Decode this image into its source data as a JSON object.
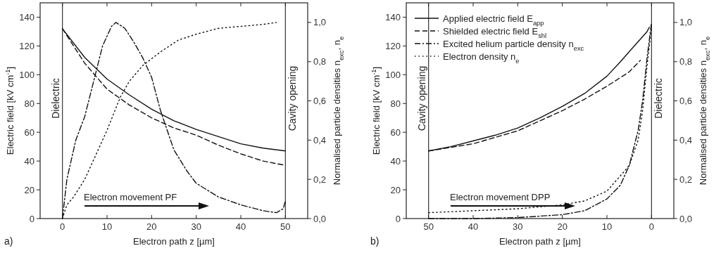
{
  "chart_data": [
    {
      "type": "line",
      "xlabel": "Electron path z [µm]",
      "ylabel": "Electric field [kV cm$^{-1}$]",
      "y2label": "Normalised particle densities n$_{exc}$, n$_{e}$",
      "xlim": [
        -5,
        55
      ],
      "xticks": [
        0,
        10,
        20,
        30,
        40,
        50
      ],
      "ylim": [
        0,
        150
      ],
      "yticks": [
        0,
        20,
        40,
        60,
        80,
        100,
        120,
        140
      ],
      "y2lim": [
        0,
        1.1
      ],
      "y2ticks": [
        {
          "value": 0,
          "label": "0,0"
        },
        {
          "value": 0.2,
          "label": "0,2"
        },
        {
          "value": 0.4,
          "label": "0,4"
        },
        {
          "value": 0.6,
          "label": "0,6"
        },
        {
          "value": 0.8,
          "label": "0,8"
        },
        {
          "value": 1,
          "label": "1,0"
        }
      ],
      "legend": false,
      "series": [
        {
          "color": "#111111",
          "line_style": "solid",
          "x": [
            0,
            5,
            10,
            15,
            20,
            25,
            30,
            35,
            40,
            45,
            50
          ],
          "values": [
            132,
            112,
            97,
            86,
            76,
            68,
            62,
            57,
            52,
            49,
            47
          ]
        },
        {
          "color": "#111111",
          "line_style": "dashed",
          "x": [
            0,
            5,
            10,
            15,
            20,
            25,
            30,
            35,
            40,
            45,
            50
          ],
          "values": [
            132,
            108,
            90,
            79,
            70,
            63,
            58,
            51,
            45,
            40,
            37
          ]
        },
        {
          "color": "#111111",
          "line_style": "dashdot",
          "axis": "y2",
          "x": [
            0,
            1,
            3,
            5,
            7,
            9,
            11,
            12,
            14,
            16,
            18,
            20,
            22,
            25,
            28,
            30,
            35,
            40,
            45,
            48,
            49.5,
            50
          ],
          "values": [
            0,
            0.2,
            0.4,
            0.52,
            0.7,
            0.88,
            0.98,
            1.0,
            0.97,
            0.9,
            0.82,
            0.72,
            0.55,
            0.35,
            0.24,
            0.18,
            0.11,
            0.07,
            0.04,
            0.03,
            0.05,
            0.09
          ]
        },
        {
          "color": "#111111",
          "line_style": "dotted",
          "axis": "y2",
          "x": [
            0,
            1,
            2.5,
            5,
            7,
            10,
            13,
            15,
            18,
            22,
            26,
            30,
            35,
            40,
            45,
            48
          ],
          "values": [
            0,
            0.07,
            0.11,
            0.2,
            0.3,
            0.45,
            0.62,
            0.7,
            0.78,
            0.85,
            0.91,
            0.94,
            0.97,
            0.98,
            0.99,
            1.0
          ]
        }
      ],
      "ref_lines": [
        {
          "axis": "x",
          "value": 0,
          "label": "Dielectric",
          "color": "#333333"
        },
        {
          "axis": "x",
          "value": 50,
          "label": "Cavity opening",
          "color": "#333333"
        }
      ],
      "annotations": [
        "a)",
        "Electron movement PF"
      ]
    },
    {
      "type": "line",
      "xlabel": "Electron path z [µm]",
      "ylabel": "Electric field [kV cm$^{-1}$]",
      "y2label": "Normalised particle densities n$_{exc}$, n$_{e}$",
      "xlim": [
        55,
        -5
      ],
      "xticks": [
        50,
        40,
        30,
        20,
        10,
        0
      ],
      "ylim": [
        0,
        150
      ],
      "yticks": [
        0,
        20,
        40,
        60,
        80,
        100,
        120,
        140
      ],
      "y2lim": [
        0,
        1.1
      ],
      "y2ticks": [
        {
          "value": 0,
          "label": "0,0"
        },
        {
          "value": 0.2,
          "label": "0,2"
        },
        {
          "value": 0.4,
          "label": "0,4"
        },
        {
          "value": 0.6,
          "label": "0,6"
        },
        {
          "value": 0.8,
          "label": "0,8"
        },
        {
          "value": 1,
          "label": "1,0"
        }
      ],
      "legend": "top left",
      "series": [
        {
          "name": "Applied electric field E$_{app}$",
          "color": "#111111",
          "line_style": "solid",
          "x": [
            50,
            45,
            40,
            35,
            30,
            25,
            20,
            15,
            10,
            7,
            5,
            3,
            1,
            0.5
          ],
          "values": [
            47,
            50,
            54,
            58,
            63,
            70,
            78,
            87,
            99,
            109,
            116,
            123,
            130,
            133
          ]
        },
        {
          "name": "Shielded electric field E$_{shl}$",
          "color": "#111111",
          "line_style": "dashed",
          "x": [
            50,
            40,
            30,
            25,
            20,
            15,
            10,
            5,
            2.5
          ],
          "values": [
            47,
            52,
            61,
            68,
            75,
            83,
            92,
            102,
            110
          ]
        },
        {
          "name": "Excited helium particle density n$_{exc}$",
          "color": "#111111",
          "line_style": "dashdot",
          "axis": "y2",
          "x": [
            50,
            40,
            30,
            20,
            15,
            10,
            7,
            5,
            3,
            2,
            1,
            0
          ],
          "values": [
            0,
            0,
            0.005,
            0.02,
            0.04,
            0.1,
            0.17,
            0.27,
            0.45,
            0.6,
            0.82,
            1.0
          ]
        },
        {
          "name": "Electron density n$_{e}$",
          "color": "#111111",
          "line_style": "dotted",
          "axis": "y2",
          "x": [
            50,
            40,
            30,
            20,
            15,
            10,
            5,
            3,
            2,
            1,
            0
          ],
          "values": [
            0.03,
            0.04,
            0.05,
            0.07,
            0.09,
            0.14,
            0.27,
            0.4,
            0.55,
            0.78,
            0.98
          ]
        }
      ],
      "ref_lines": [
        {
          "axis": "x",
          "value": 50,
          "label": "Cavity opening",
          "color": "#333333"
        },
        {
          "axis": "x",
          "value": 0,
          "label": "Dielectric",
          "color": "#333333"
        }
      ],
      "annotations": [
        "b)",
        "Electron movement DPP"
      ]
    }
  ]
}
